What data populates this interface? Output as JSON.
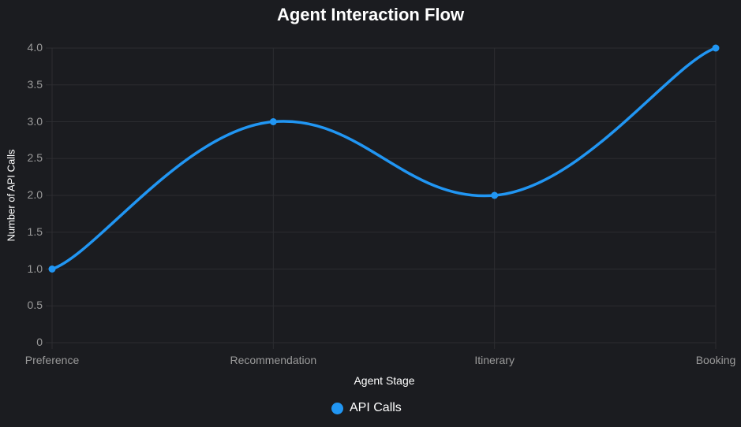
{
  "title": "Agent Interaction Flow",
  "colors": {
    "background": "#1b1c20",
    "grid": "#2c2d31",
    "series": "#2196f3",
    "tick": "#9a9a9a",
    "text": "#ffffff"
  },
  "axes": {
    "xlabel": "Agent Stage",
    "ylabel": "Number of API Calls",
    "yticks": [
      "4.0",
      "3.5",
      "3.0",
      "2.5",
      "2.0",
      "1.5",
      "1.0",
      "0.5",
      "0"
    ],
    "xticks": [
      "Preference",
      "Recommendation",
      "Itinerary",
      "Booking"
    ]
  },
  "legend": {
    "label": "API Calls"
  },
  "chart_data": {
    "type": "line",
    "title": "Agent Interaction Flow",
    "categories": [
      "Preference",
      "Recommendation",
      "Itinerary",
      "Booking"
    ],
    "series": [
      {
        "name": "API Calls",
        "values": [
          1,
          3,
          2,
          4
        ],
        "color": "#2196f3"
      }
    ],
    "xlabel": "Agent Stage",
    "ylabel": "Number of API Calls",
    "ylim": [
      0,
      4
    ],
    "ytick_step": 0.5,
    "grid": true,
    "legend_position": "bottom",
    "smooth": true
  }
}
